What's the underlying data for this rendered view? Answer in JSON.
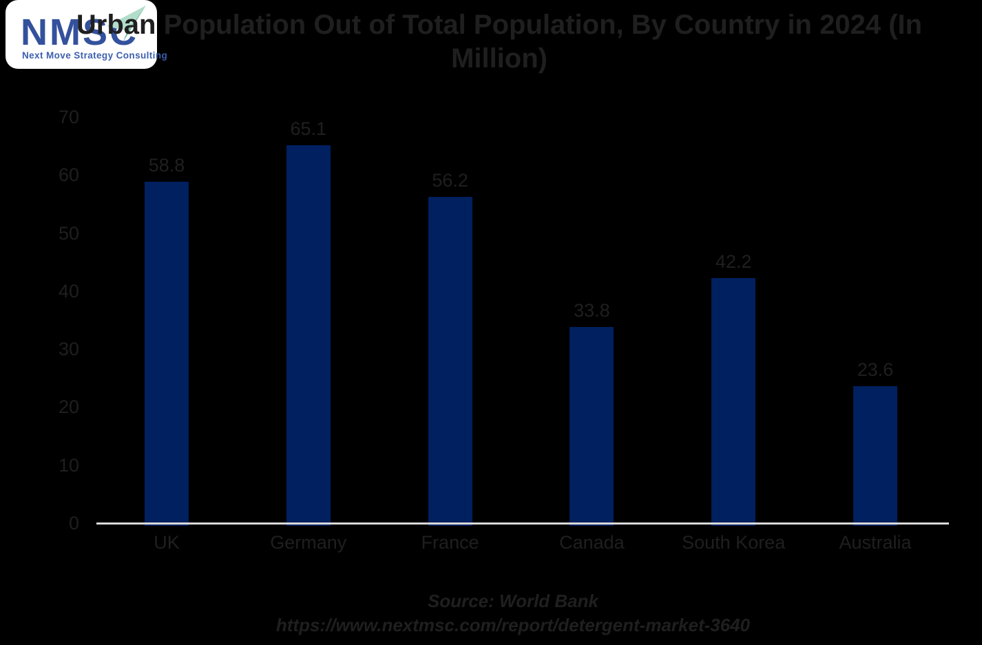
{
  "logo": {
    "acronym": "NMSC",
    "tagline": "Next Move Strategy Consulting"
  },
  "header": {
    "title_line1": "Urban Population Out of Total Population, By Country in 2024 (In",
    "title_line2": "Million)"
  },
  "footer": {
    "source_line1": "Source: World Bank",
    "source_line2": "https://www.nextmsc.com/report/detergent-market-3640"
  },
  "chart_data": {
    "type": "bar",
    "title": "Urban Population Out of Total Population, By Country in 2024 (In Million)",
    "categories": [
      "UK",
      "Germany",
      "France",
      "Canada",
      "South Korea",
      "Australia"
    ],
    "values": [
      58.8,
      65.1,
      56.2,
      33.8,
      42.2,
      23.6
    ],
    "data_labels": [
      "58.8",
      "65.1",
      "56.2",
      "33.8",
      "42.2",
      "23.6"
    ],
    "xlabel": "",
    "ylabel": "",
    "ylim": [
      0,
      70
    ],
    "yticks": [
      0,
      10,
      20,
      30,
      40,
      50,
      60,
      70
    ],
    "grid": false,
    "legend": "none",
    "colors": {
      "bar": "#002060",
      "axis_line": "#d9d9d9",
      "text": "#1f1f1f",
      "background": "#000000",
      "logo_navy": "#33519c",
      "logo_blue": "#3c5fae",
      "plane_light": "#b2ddcb",
      "plane_dark": "#7cc3a6"
    }
  }
}
